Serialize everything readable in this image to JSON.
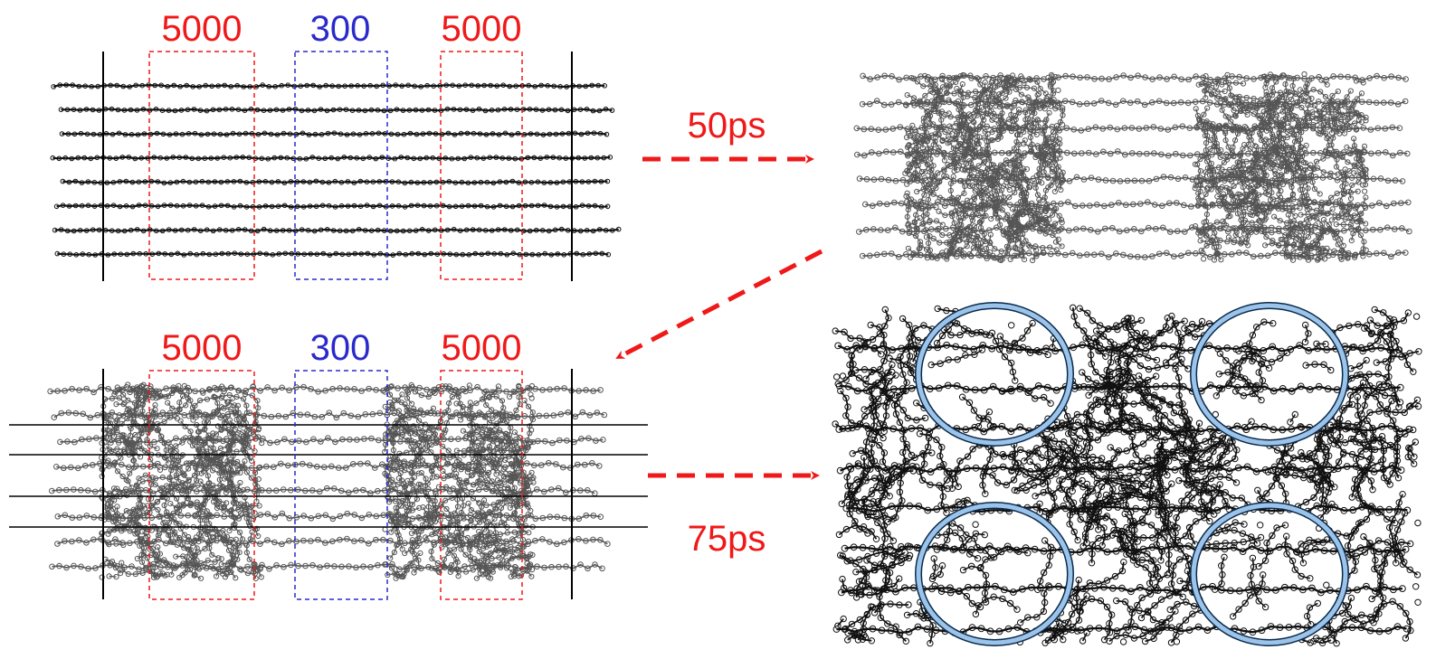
{
  "panels": [
    {
      "labels": [
        "5000",
        "300",
        "5000"
      ]
    },
    {
      "labels": [
        "5000",
        "300",
        "5000"
      ]
    }
  ],
  "arrows": [
    {
      "label": "50ps"
    },
    {
      "label": "75ps"
    }
  ]
}
